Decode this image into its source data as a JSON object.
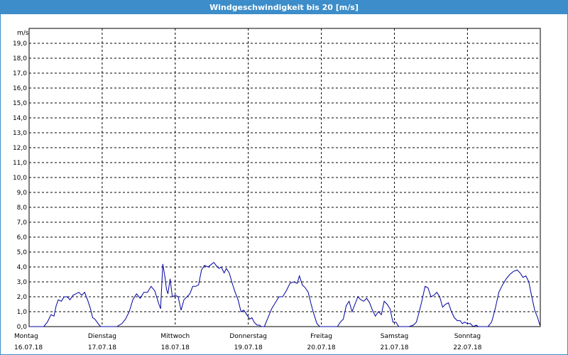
{
  "window": {
    "title": "Windgeschwindigkeit bis 20 [m/s]"
  },
  "colors": {
    "titlebar": "#3c8dc9",
    "series": "#0000a0",
    "grid": "#000000"
  },
  "chart_data": {
    "type": "line",
    "title": "Windgeschwindigkeit bis 20 [m/s]",
    "ylabel": "m/s",
    "ylim": [
      0,
      20
    ],
    "yticks": [
      "0,0",
      "1,0",
      "2,0",
      "3,0",
      "4,0",
      "5,0",
      "6,0",
      "7,0",
      "8,0",
      "9,0",
      "10,0",
      "11,0",
      "12,0",
      "13,0",
      "14,0",
      "15,0",
      "16,0",
      "17,0",
      "18,0",
      "19,0"
    ],
    "xlim": [
      0,
      7
    ],
    "x_unit": "days from 16.07.18 00:00",
    "grid": true,
    "days": [
      {
        "name": "Montag",
        "date": "16.07.18"
      },
      {
        "name": "Dienstag",
        "date": "17.07.18"
      },
      {
        "name": "Mittwoch",
        "date": "18.07.18"
      },
      {
        "name": "Donnerstag",
        "date": "19.07.18"
      },
      {
        "name": "Freitag",
        "date": "20.07.18"
      },
      {
        "name": "Samstag",
        "date": "21.07.18"
      },
      {
        "name": "Sonntag",
        "date": "22.07.18"
      }
    ],
    "series": [
      {
        "x": [
          0,
          0.2,
          0.25,
          0.3,
          0.34,
          0.37,
          0.4,
          0.44,
          0.48,
          0.52,
          0.56,
          0.6,
          0.64,
          0.68,
          0.72,
          0.76,
          0.8,
          0.84,
          0.87,
          0.9,
          0.93,
          0.96,
          0.98,
          1.0,
          1.2,
          1.27,
          1.32,
          1.37,
          1.42,
          1.47,
          1.52,
          1.57,
          1.62,
          1.67,
          1.72,
          1.77,
          1.8,
          1.83,
          1.86,
          1.88,
          1.9,
          1.93,
          1.96,
          2.0,
          2.04,
          2.08,
          2.12,
          2.16,
          2.2,
          2.24,
          2.28,
          2.32,
          2.36,
          2.4,
          2.45,
          2.5,
          2.53,
          2.56,
          2.6,
          2.63,
          2.67,
          2.7,
          2.74,
          2.78,
          2.82,
          2.86,
          2.9,
          2.94,
          2.98,
          3.02,
          3.05,
          3.08,
          3.12,
          3.15,
          3.18,
          3.22,
          3.27,
          3.32,
          3.37,
          3.42,
          3.47,
          3.52,
          3.57,
          3.62,
          3.67,
          3.7,
          3.74,
          3.78,
          3.82,
          3.86,
          3.9,
          3.94,
          3.98,
          4.02,
          4.06,
          4.12,
          4.22,
          4.26,
          4.3,
          4.34,
          4.38,
          4.42,
          4.46,
          4.5,
          4.54,
          4.58,
          4.62,
          4.66,
          4.7,
          4.74,
          4.78,
          4.82,
          4.86,
          4.9,
          4.94,
          4.98,
          5.02,
          5.06,
          5.1,
          5.12,
          5.2,
          5.26,
          5.3,
          5.34,
          5.38,
          5.42,
          5.46,
          5.5,
          5.54,
          5.58,
          5.62,
          5.66,
          5.7,
          5.74,
          5.78,
          5.82,
          5.86,
          5.9,
          5.93,
          5.96,
          6.0,
          6.04,
          6.08,
          6.12,
          6.15,
          6.28,
          6.33,
          6.38,
          6.43,
          6.48,
          6.53,
          6.58,
          6.63,
          6.68,
          6.72,
          6.76,
          6.8,
          6.84,
          6.88,
          6.92,
          6.96,
          6.99
        ],
        "y": [
          0,
          0,
          0.3,
          0.8,
          0.7,
          1.4,
          1.8,
          1.7,
          2.0,
          2.0,
          1.8,
          2.1,
          2.2,
          2.3,
          2.1,
          2.3,
          1.8,
          1.2,
          0.6,
          0.5,
          0.3,
          0.1,
          0,
          0,
          0,
          0.2,
          0.5,
          1.0,
          1.8,
          2.2,
          1.9,
          2.3,
          2.3,
          2.7,
          2.4,
          1.6,
          1.2,
          4.2,
          3.3,
          2.5,
          2.2,
          3.2,
          2.0,
          2.1,
          2.0,
          1.1,
          1.8,
          2.0,
          2.2,
          2.7,
          2.7,
          2.8,
          3.8,
          4.1,
          4.0,
          4.2,
          4.3,
          4.1,
          3.9,
          4.0,
          3.6,
          3.9,
          3.6,
          2.9,
          2.3,
          1.8,
          1.0,
          1.1,
          0.8,
          0.5,
          0.6,
          0.3,
          0.1,
          0.1,
          0,
          0,
          0.6,
          1.2,
          1.6,
          2.0,
          2.0,
          2.4,
          2.9,
          3.0,
          2.9,
          3.4,
          2.8,
          2.6,
          2.3,
          1.5,
          0.8,
          0.2,
          0,
          0,
          0,
          0,
          0,
          0.3,
          0.5,
          1.4,
          1.7,
          1.0,
          1.5,
          2.0,
          1.8,
          1.7,
          1.9,
          1.6,
          1.1,
          0.7,
          1.0,
          0.8,
          1.7,
          1.5,
          1.2,
          0.3,
          0.3,
          0,
          0,
          0,
          0,
          0.1,
          0.3,
          1.0,
          1.8,
          2.7,
          2.6,
          2.0,
          2.1,
          2.3,
          2.0,
          1.3,
          1.5,
          1.6,
          1.0,
          0.6,
          0.4,
          0.4,
          0.2,
          0.3,
          0.2,
          0.2,
          0,
          0.1,
          0,
          0,
          0.3,
          1.2,
          2.3,
          2.8,
          3.2,
          3.5,
          3.7,
          3.8,
          3.6,
          3.3,
          3.4,
          3.0,
          2.0,
          1.1,
          0.6,
          0.1
        ]
      }
    ]
  }
}
